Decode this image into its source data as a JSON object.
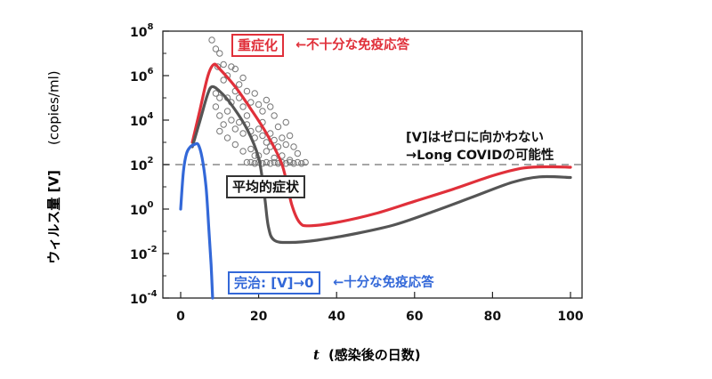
{
  "chart_data": {
    "type": "line",
    "xlabel_var": "t",
    "xlabel": "(感染後の日数)",
    "ylabel": "ウィルス量 [V]",
    "ylabel_unit": "(copies/ml)",
    "y_scale": "log",
    "xlim": [
      0,
      100
    ],
    "ylim_exp": [
      -4,
      8
    ],
    "x_ticks": [
      "0",
      "20",
      "40",
      "60",
      "80",
      "100"
    ],
    "y_ticks": [
      {
        "base": "10",
        "exp": "8"
      },
      {
        "base": "10",
        "exp": "6"
      },
      {
        "base": "10",
        "exp": "4"
      },
      {
        "base": "10",
        "exp": "2"
      },
      {
        "base": "10",
        "exp": "0"
      },
      {
        "base": "10",
        "exp": "-2"
      },
      {
        "base": "10",
        "exp": "-4"
      }
    ],
    "threshold_log10": 2,
    "series": [
      {
        "name": "重症化",
        "color": "#e0303a",
        "points_log10": [
          [
            3,
            3.0
          ],
          [
            5,
            4.5
          ],
          [
            7,
            6.0
          ],
          [
            8.5,
            6.5
          ],
          [
            10,
            6.3
          ],
          [
            14,
            5.5
          ],
          [
            18,
            4.5
          ],
          [
            22,
            3.4
          ],
          [
            26,
            2.0
          ],
          [
            28.5,
            0.2
          ],
          [
            30.5,
            -0.6
          ],
          [
            33,
            -0.75
          ],
          [
            40,
            -0.6
          ],
          [
            50,
            -0.2
          ],
          [
            60,
            0.35
          ],
          [
            70,
            0.9
          ],
          [
            80,
            1.5
          ],
          [
            88,
            1.85
          ],
          [
            95,
            1.9
          ],
          [
            100,
            1.88
          ]
        ]
      },
      {
        "name": "平均的症状",
        "color": "#555555",
        "points_log10": [
          [
            3,
            2.8
          ],
          [
            5,
            4.0
          ],
          [
            6.8,
            5.1
          ],
          [
            8,
            5.5
          ],
          [
            10,
            5.3
          ],
          [
            13,
            4.7
          ],
          [
            17,
            3.6
          ],
          [
            20,
            2.3
          ],
          [
            21.5,
            0.6
          ],
          [
            22.5,
            -0.8
          ],
          [
            24,
            -1.4
          ],
          [
            28,
            -1.5
          ],
          [
            35,
            -1.4
          ],
          [
            45,
            -1.1
          ],
          [
            55,
            -0.7
          ],
          [
            65,
            -0.1
          ],
          [
            75,
            0.55
          ],
          [
            85,
            1.2
          ],
          [
            92,
            1.45
          ],
          [
            100,
            1.42
          ]
        ]
      },
      {
        "name": "完治: [V]→0",
        "color": "#3368d8",
        "points_log10": [
          [
            0,
            0
          ],
          [
            0.7,
            1.7
          ],
          [
            1.5,
            2.5
          ],
          [
            2.5,
            2.8
          ],
          [
            3.5,
            2.9
          ],
          [
            4.5,
            2.9
          ],
          [
            5.5,
            2.3
          ],
          [
            6.5,
            1.0
          ],
          [
            7.2,
            -0.8
          ],
          [
            7.8,
            -2.5
          ],
          [
            8.2,
            -4.0
          ]
        ]
      }
    ],
    "scatter_log10": [
      [
        8,
        7.6
      ],
      [
        9,
        7.2
      ],
      [
        10,
        7.0
      ],
      [
        9.5,
        6.4
      ],
      [
        11,
        6.5
      ],
      [
        12,
        6.0
      ],
      [
        13,
        6.4
      ],
      [
        14,
        6.3
      ],
      [
        11,
        5.8
      ],
      [
        9,
        5.2
      ],
      [
        10,
        5.0
      ],
      [
        12,
        5.0
      ],
      [
        13,
        4.8
      ],
      [
        14,
        5.3
      ],
      [
        15,
        5.0
      ],
      [
        16,
        4.6
      ],
      [
        17,
        5.3
      ],
      [
        18,
        4.8
      ],
      [
        19,
        5.2
      ],
      [
        20,
        4.7
      ],
      [
        21,
        4.4
      ],
      [
        22,
        4.9
      ],
      [
        23,
        4.6
      ],
      [
        24,
        4.2
      ],
      [
        9,
        4.6
      ],
      [
        10,
        4.2
      ],
      [
        11,
        3.8
      ],
      [
        12,
        4.4
      ],
      [
        13,
        4.0
      ],
      [
        14,
        3.6
      ],
      [
        15,
        3.9
      ],
      [
        16,
        3.4
      ],
      [
        17,
        3.8
      ],
      [
        18,
        3.5
      ],
      [
        19,
        3.2
      ],
      [
        20,
        3.6
      ],
      [
        21,
        3.3
      ],
      [
        22,
        3.0
      ],
      [
        23,
        3.4
      ],
      [
        24,
        3.1
      ],
      [
        25,
        2.8
      ],
      [
        26,
        3.2
      ],
      [
        27,
        2.9
      ],
      [
        28,
        3.3
      ],
      [
        29,
        2.8
      ],
      [
        30,
        2.5
      ],
      [
        10,
        3.5
      ],
      [
        12,
        3.2
      ],
      [
        14,
        2.9
      ],
      [
        16,
        2.6
      ],
      [
        18,
        2.7
      ],
      [
        20,
        2.4
      ],
      [
        22,
        2.6
      ],
      [
        24,
        2.3
      ],
      [
        26,
        2.4
      ],
      [
        28,
        2.2
      ],
      [
        17,
        2.1
      ],
      [
        18,
        2.1
      ],
      [
        19,
        2.05
      ],
      [
        20,
        2.1
      ],
      [
        21,
        2.05
      ],
      [
        22,
        2.1
      ],
      [
        23,
        2.05
      ],
      [
        24,
        2.1
      ],
      [
        25,
        2.05
      ],
      [
        26,
        2.1
      ],
      [
        27,
        2.05
      ],
      [
        28,
        2.1
      ],
      [
        29,
        2.05
      ],
      [
        30,
        2.1
      ],
      [
        31,
        2.05
      ],
      [
        32,
        2.1
      ],
      [
        19,
        2.4
      ],
      [
        23,
        2.8
      ],
      [
        25,
        3.7
      ],
      [
        27,
        3.9
      ],
      [
        15,
        5.6
      ],
      [
        16,
        5.9
      ],
      [
        17,
        4.2
      ],
      [
        21,
        3.9
      ]
    ]
  },
  "annotations": {
    "severe_label": "重症化",
    "severe_note": "←不十分な免疫応答",
    "average_label": "平均的症状",
    "cure_label": "完治: [V]→0",
    "cure_note": "←十分な免疫応答",
    "persist_line1": "[V]はゼロに向かわない",
    "persist_line2": "→Long COVIDの可能性"
  }
}
